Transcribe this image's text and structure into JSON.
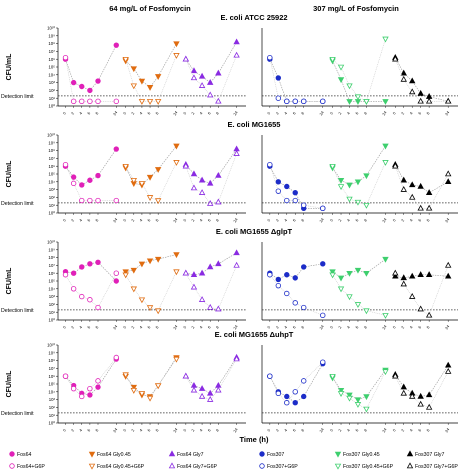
{
  "figure": {
    "col_titles": [
      "64 mg/L of Fosfomycin",
      "307 mg/L of Fosfomycin"
    ],
    "y_axis_label": "CFU/mL",
    "x_axis_label": "Time (h)",
    "detection_label": "Detection limit",
    "panel_titles": [
      "E. coli ATCC 25922",
      "E. coli MG1655",
      "E. coli MG1655 ΔglpT",
      "E. coli MG1655 ΔuhpT"
    ],
    "y_tick_labels": [
      "10⁰",
      "10¹",
      "10²",
      "10³",
      "10⁴",
      "10⁵",
      "10⁶",
      "10⁷",
      "10⁸",
      "10⁹",
      "10¹⁰"
    ],
    "x_tick_labels": [
      "0",
      "2",
      "4",
      "6",
      "8",
      "24"
    ],
    "legend": [
      {
        "label": "Fos64",
        "color": "#e020b8",
        "marker": "circle",
        "filled": true
      },
      {
        "label": "Fos64 Gly0.45",
        "color": "#e06c10",
        "marker": "triangle-down",
        "filled": true
      },
      {
        "label": "Fos64 Gly7",
        "color": "#8a2be2",
        "marker": "triangle-up",
        "filled": true
      },
      {
        "label": "Fos307",
        "color": "#1c2cc8",
        "marker": "circle",
        "filled": true
      },
      {
        "label": "Fos307 Gly0.45",
        "color": "#3ecf6e",
        "marker": "triangle-down",
        "filled": true
      },
      {
        "label": "Fos307 Gly7",
        "color": "#000000",
        "marker": "triangle-up",
        "filled": true
      },
      {
        "label": "Fos64+G6P",
        "color": "#e020b8",
        "marker": "circle",
        "filled": false
      },
      {
        "label": "Fos64 Gly0.45+G6P",
        "color": "#e06c10",
        "marker": "triangle-down",
        "filled": false
      },
      {
        "label": "Fos64 Gly7+G6P",
        "color": "#8a2be2",
        "marker": "triangle-up",
        "filled": false
      },
      {
        "label": "Fos307+G6P",
        "color": "#1c2cc8",
        "marker": "circle",
        "filled": false
      },
      {
        "label": "Fos307 Gly0.45+G6P",
        "color": "#3ecf6e",
        "marker": "triangle-down",
        "filled": false
      },
      {
        "label": "Fos307 Gly7+G6P",
        "color": "#000000",
        "marker": "triangle-up",
        "filled": false
      }
    ]
  },
  "chart_data": {
    "type": "scatter",
    "x_unit": "Time (h)",
    "time_points": [
      0,
      2,
      4,
      6,
      8,
      24
    ],
    "y_scale": "log10",
    "ylim": [
      0,
      10
    ],
    "detection_limit": 1.3,
    "panels": [
      {
        "title": "E. coli ATCC 25922",
        "left": [
          {
            "series": "Fos64",
            "values": [
              6.0,
              3.0,
              2.5,
              2.0,
              3.2,
              7.8
            ]
          },
          {
            "series": "Fos64+G6P",
            "values": [
              6.2,
              0.6,
              0.6,
              0.6,
              0.6,
              0.6
            ]
          },
          {
            "series": "Fos64 Gly0.45",
            "values": [
              5.8,
              4.8,
              3.2,
              2.4,
              3.8,
              8.0
            ]
          },
          {
            "series": "Fos64 Gly0.45+G6P",
            "values": [
              6.0,
              2.6,
              0.6,
              0.6,
              0.6,
              6.5
            ]
          },
          {
            "series": "Fos64 Gly7",
            "values": [
              6.0,
              4.5,
              3.8,
              3.0,
              4.2,
              8.2
            ]
          },
          {
            "series": "Fos64 Gly7+G6P",
            "values": [
              6.0,
              3.6,
              2.6,
              1.4,
              0.6,
              6.5
            ]
          }
        ],
        "right": [
          {
            "series": "Fos307",
            "values": [
              6.0,
              3.6,
              0.6,
              0.6,
              0.6,
              0.6
            ]
          },
          {
            "series": "Fos307+G6P",
            "values": [
              6.2,
              1.0,
              0.6,
              0.6,
              0.6,
              0.6
            ]
          },
          {
            "series": "Fos307 Gly0.45",
            "values": [
              5.8,
              3.4,
              0.6,
              0.6,
              0.6,
              0.6
            ]
          },
          {
            "series": "Fos307 Gly0.45+G6P",
            "values": [
              6.0,
              5.0,
              2.6,
              1.2,
              0.6,
              8.6
            ]
          },
          {
            "series": "Fos307 Gly7",
            "values": [
              6.2,
              4.2,
              3.2,
              1.6,
              1.2,
              0.6
            ]
          },
          {
            "series": "Fos307 Gly7+G6P",
            "values": [
              6.0,
              3.4,
              1.8,
              0.6,
              0.6,
              0.6
            ]
          }
        ]
      },
      {
        "title": "E. coli MG1655",
        "left": [
          {
            "series": "Fos64",
            "values": [
              6.0,
              4.6,
              3.6,
              4.2,
              4.8,
              8.2
            ]
          },
          {
            "series": "Fos64+G6P",
            "values": [
              6.2,
              3.8,
              1.6,
              1.6,
              1.6,
              1.6
            ]
          },
          {
            "series": "Fos64 Gly0.45",
            "values": [
              5.8,
              3.8,
              3.6,
              4.6,
              5.6,
              8.6
            ]
          },
          {
            "series": "Fos64 Gly0.45+G6P",
            "values": [
              6.0,
              4.2,
              3.8,
              2.0,
              1.6,
              6.5
            ]
          },
          {
            "series": "Fos64 Gly7",
            "values": [
              6.2,
              5.0,
              4.2,
              3.8,
              4.8,
              8.2
            ]
          },
          {
            "series": "Fos64 Gly7+G6P",
            "values": [
              6.0,
              3.2,
              2.6,
              1.2,
              1.4,
              7.6
            ]
          }
        ],
        "right": [
          {
            "series": "Fos307",
            "values": [
              6.0,
              4.0,
              3.4,
              2.6,
              0.6,
              0.6
            ]
          },
          {
            "series": "Fos307+G6P",
            "values": [
              6.2,
              2.8,
              1.6,
              1.6,
              1.0,
              0.6
            ]
          },
          {
            "series": "Fos307 Gly0.45",
            "values": [
              5.8,
              4.2,
              3.6,
              4.0,
              4.8,
              8.6
            ]
          },
          {
            "series": "Fos307 Gly0.45+G6P",
            "values": [
              6.0,
              3.4,
              1.8,
              1.4,
              1.0,
              6.5
            ]
          },
          {
            "series": "Fos307 Gly7",
            "values": [
              6.2,
              4.2,
              3.6,
              3.4,
              2.6,
              4.0
            ]
          },
          {
            "series": "Fos307 Gly7+G6P",
            "values": [
              6.0,
              3.0,
              2.0,
              0.6,
              0.6,
              5.0
            ]
          }
        ]
      },
      {
        "title": "E. coli MG1655 ΔglpT",
        "left": [
          {
            "series": "Fos64",
            "values": [
              6.2,
              6.0,
              6.8,
              7.2,
              7.4,
              5.0
            ]
          },
          {
            "series": "Fos64+G6P",
            "values": [
              5.8,
              4.0,
              3.0,
              2.6,
              1.6,
              6.0
            ]
          },
          {
            "series": "Fos64 Gly0.45",
            "values": [
              6.2,
              6.4,
              7.2,
              7.6,
              7.8,
              8.4
            ]
          },
          {
            "series": "Fos64 Gly0.45+G6P",
            "values": [
              5.8,
              4.0,
              2.6,
              1.6,
              1.2,
              6.2
            ]
          },
          {
            "series": "Fos64 Gly7",
            "values": [
              6.0,
              5.8,
              6.0,
              6.8,
              7.2,
              8.6
            ]
          },
          {
            "series": "Fos64 Gly7+G6P",
            "values": [
              6.0,
              4.2,
              2.6,
              1.6,
              1.4,
              7.0
            ]
          }
        ],
        "right": [
          {
            "series": "Fos307",
            "values": [
              6.0,
              5.2,
              5.8,
              5.4,
              6.8,
              7.2
            ]
          },
          {
            "series": "Fos307+G6P",
            "values": [
              5.8,
              4.4,
              3.4,
              2.2,
              1.6,
              0.6
            ]
          },
          {
            "series": "Fos307 Gly0.45",
            "values": [
              6.2,
              5.4,
              6.0,
              6.4,
              6.0,
              7.8
            ]
          },
          {
            "series": "Fos307 Gly0.45+G6P",
            "values": [
              5.8,
              4.0,
              3.0,
              2.0,
              1.2,
              0.6
            ]
          },
          {
            "series": "Fos307 Gly7",
            "values": [
              5.6,
              5.4,
              5.6,
              5.8,
              5.8,
              5.6
            ]
          },
          {
            "series": "Fos307 Gly7+G6P",
            "values": [
              6.0,
              4.6,
              3.0,
              1.4,
              0.6,
              7.0
            ]
          }
        ]
      },
      {
        "title": "E. coli MG1655 ΔuhpT",
        "left": [
          {
            "series": "Fos64",
            "values": [
              6.0,
              4.8,
              3.8,
              3.6,
              4.6,
              8.2
            ]
          },
          {
            "series": "Fos64+G6P",
            "values": [
              6.0,
              4.4,
              3.4,
              4.4,
              5.4,
              8.4
            ]
          },
          {
            "series": "Fos64 Gly0.45",
            "values": [
              6.0,
              4.6,
              3.6,
              3.4,
              4.8,
              8.4
            ]
          },
          {
            "series": "Fos64 Gly0.45+G6P",
            "values": [
              6.2,
              4.2,
              3.8,
              3.2,
              4.8,
              8.2
            ]
          },
          {
            "series": "Fos64 Gly7",
            "values": [
              6.0,
              4.8,
              4.4,
              3.8,
              4.8,
              8.4
            ]
          },
          {
            "series": "Fos64 Gly7+G6P",
            "values": [
              6.0,
              4.2,
              3.4,
              3.0,
              4.2,
              8.2
            ]
          }
        ],
        "right": [
          {
            "series": "Fos307",
            "values": [
              6.0,
              4.0,
              3.4,
              2.6,
              3.4,
              7.6
            ]
          },
          {
            "series": "Fos307+G6P",
            "values": [
              6.0,
              3.8,
              2.6,
              4.0,
              5.4,
              7.8
            ]
          },
          {
            "series": "Fos307 Gly0.45",
            "values": [
              5.8,
              4.2,
              3.6,
              3.0,
              3.4,
              6.8
            ]
          },
          {
            "series": "Fos307 Gly0.45+G6P",
            "values": [
              6.0,
              3.8,
              3.2,
              2.4,
              1.8,
              6.6
            ]
          },
          {
            "series": "Fos307 Gly7",
            "values": [
              6.2,
              4.6,
              3.8,
              3.4,
              3.6,
              7.4
            ]
          },
          {
            "series": "Fos307 Gly7+G6P",
            "values": [
              6.0,
              3.8,
              3.4,
              2.4,
              2.0,
              6.6
            ]
          }
        ]
      }
    ]
  }
}
